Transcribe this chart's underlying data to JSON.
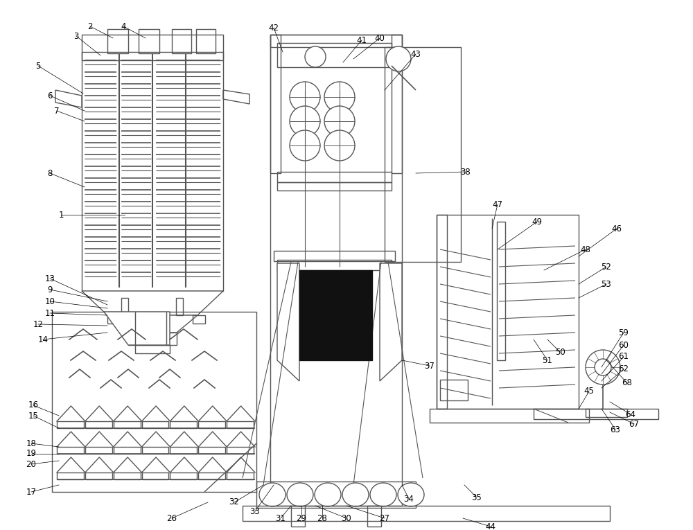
{
  "bg_color": "#ffffff",
  "line_color": "#555555",
  "lw": 1.0,
  "fig_width": 10.0,
  "fig_height": 7.65
}
